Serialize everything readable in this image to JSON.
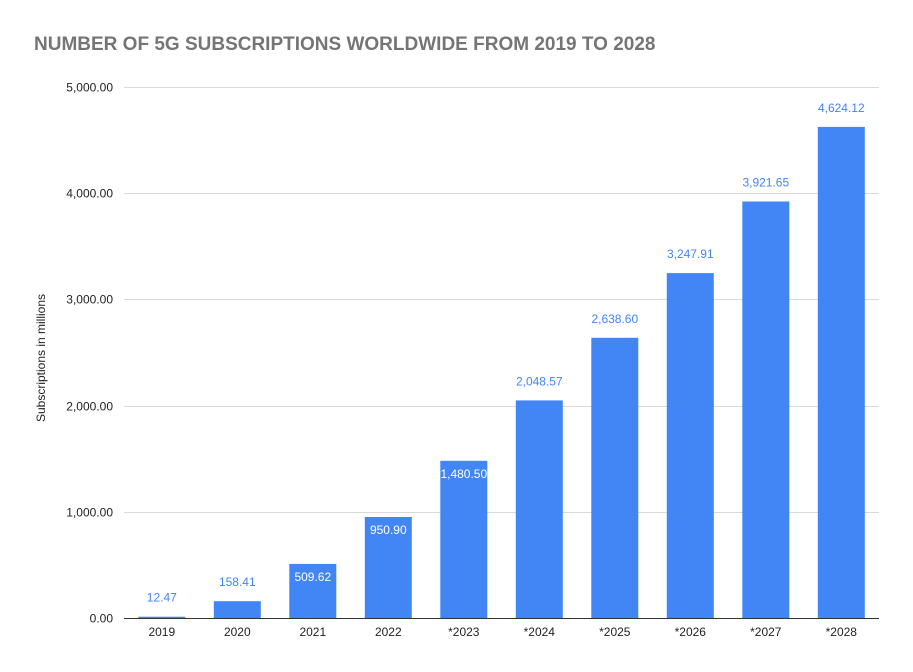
{
  "chart_data": {
    "type": "bar",
    "title": "NUMBER OF 5G SUBSCRIPTIONS WORLDWIDE FROM 2019 TO 2028",
    "xlabel": "",
    "ylabel": "Subscriptions in millions",
    "categories": [
      "2019",
      "2020",
      "2021",
      "2022",
      "*2023",
      "*2024",
      "*2025",
      "*2026",
      "*2027",
      "*2028"
    ],
    "values": [
      12.47,
      158.41,
      509.62,
      950.9,
      1480.5,
      2048.57,
      2638.6,
      3247.91,
      3921.65,
      4624.12
    ],
    "data_labels": [
      "12.47",
      "158.41",
      "509.62",
      "950.90",
      "1,480.50",
      "2,048.57",
      "2,638.60",
      "3,247.91",
      "3,921.65",
      "4,624.12"
    ],
    "y_ticks": [
      0,
      1000,
      2000,
      3000,
      4000,
      5000
    ],
    "y_tick_labels": [
      "0.00",
      "1,000.00",
      "2,000.00",
      "3,000.00",
      "4,000.00",
      "5,000.00"
    ],
    "ylim": [
      0,
      5000
    ],
    "grid": true,
    "legend": "none",
    "colors": {
      "bar": "#4285f4",
      "label_outside": "#4285f4",
      "label_inside": "#ffffff",
      "grid": "#d9d9d9",
      "axis": "#333333",
      "title": "#757575"
    }
  }
}
